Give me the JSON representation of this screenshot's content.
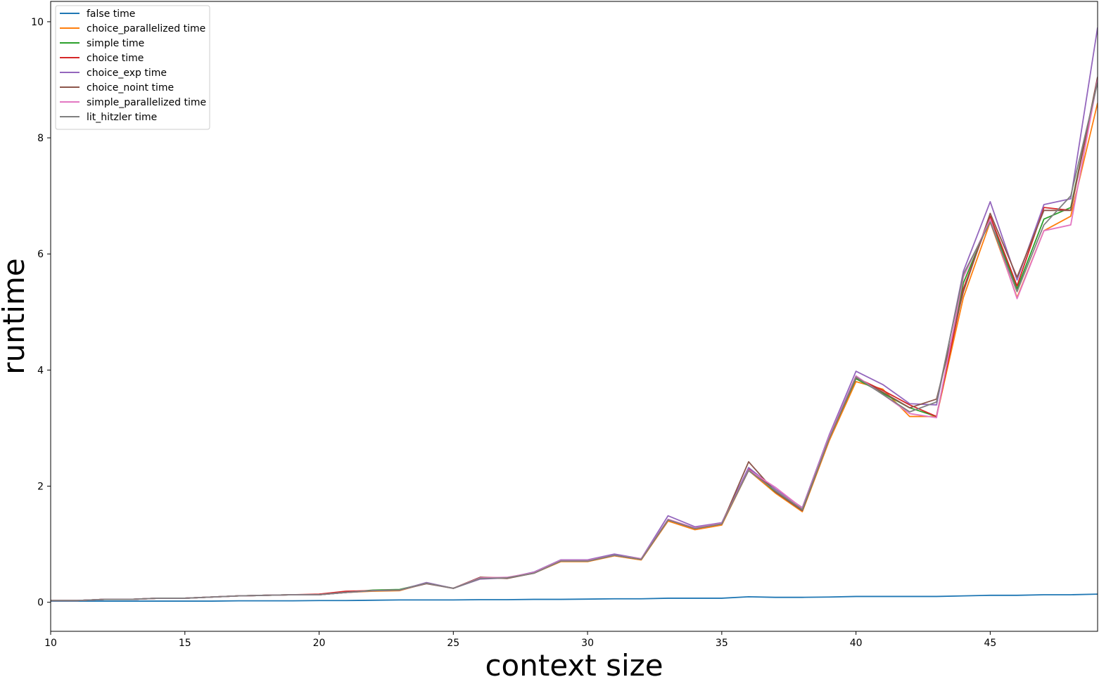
{
  "chart_data": {
    "type": "line",
    "title": "",
    "xlabel": "context size",
    "ylabel": "runtime",
    "xlim": [
      10,
      49
    ],
    "ylim": [
      -0.5,
      10.35
    ],
    "xticks": [
      10,
      15,
      20,
      25,
      30,
      35,
      40,
      45
    ],
    "yticks": [
      0,
      2,
      4,
      6,
      8,
      10
    ],
    "grid": false,
    "legend_position": "top-left",
    "x": [
      10,
      11,
      12,
      13,
      14,
      15,
      16,
      17,
      18,
      19,
      20,
      21,
      22,
      23,
      24,
      25,
      26,
      27,
      28,
      29,
      30,
      31,
      32,
      33,
      34,
      35,
      36,
      37,
      38,
      39,
      40,
      41,
      42,
      43,
      44,
      45,
      46,
      47,
      48,
      49
    ],
    "series": [
      {
        "name": "false time",
        "color": "#1f77b4",
        "values": [
          0.02,
          0.02,
          0.02,
          0.02,
          0.02,
          0.02,
          0.02,
          0.025,
          0.025,
          0.025,
          0.03,
          0.03,
          0.035,
          0.04,
          0.04,
          0.04,
          0.045,
          0.045,
          0.05,
          0.05,
          0.055,
          0.06,
          0.06,
          0.07,
          0.07,
          0.07,
          0.095,
          0.085,
          0.085,
          0.09,
          0.1,
          0.1,
          0.1,
          0.1,
          0.11,
          0.12,
          0.12,
          0.13,
          0.13,
          0.14
        ]
      },
      {
        "name": "choice_parallelized time",
        "color": "#ff7f0e",
        "values": [
          0.03,
          0.03,
          0.05,
          0.05,
          0.07,
          0.07,
          0.09,
          0.11,
          0.12,
          0.13,
          0.13,
          0.17,
          0.19,
          0.2,
          0.33,
          0.24,
          0.41,
          0.42,
          0.5,
          0.7,
          0.7,
          0.8,
          0.73,
          1.4,
          1.25,
          1.33,
          2.27,
          1.88,
          1.56,
          2.78,
          3.8,
          3.67,
          3.2,
          3.2,
          5.25,
          6.55,
          5.25,
          6.4,
          6.65,
          8.6
        ]
      },
      {
        "name": "simple time",
        "color": "#2ca02c",
        "values": [
          0.03,
          0.03,
          0.05,
          0.05,
          0.07,
          0.07,
          0.09,
          0.11,
          0.12,
          0.13,
          0.13,
          0.17,
          0.21,
          0.22,
          0.33,
          0.24,
          0.42,
          0.42,
          0.51,
          0.71,
          0.71,
          0.81,
          0.74,
          1.42,
          1.27,
          1.35,
          2.3,
          1.9,
          1.58,
          2.82,
          3.85,
          3.6,
          3.35,
          3.2,
          5.5,
          6.6,
          5.4,
          6.6,
          6.8,
          9.0
        ]
      },
      {
        "name": "choice time",
        "color": "#d62728",
        "values": [
          0.03,
          0.03,
          0.05,
          0.05,
          0.07,
          0.07,
          0.09,
          0.11,
          0.12,
          0.13,
          0.14,
          0.19,
          0.2,
          0.21,
          0.33,
          0.24,
          0.43,
          0.42,
          0.51,
          0.71,
          0.71,
          0.81,
          0.74,
          1.42,
          1.27,
          1.35,
          2.3,
          1.92,
          1.6,
          2.82,
          3.87,
          3.65,
          3.4,
          3.2,
          5.4,
          6.65,
          5.45,
          6.8,
          6.75,
          9.0
        ]
      },
      {
        "name": "choice_exp time",
        "color": "#9467bd",
        "values": [
          0.03,
          0.03,
          0.05,
          0.05,
          0.07,
          0.07,
          0.09,
          0.11,
          0.12,
          0.13,
          0.13,
          0.17,
          0.2,
          0.21,
          0.34,
          0.24,
          0.4,
          0.42,
          0.52,
          0.73,
          0.73,
          0.83,
          0.75,
          1.49,
          1.3,
          1.37,
          2.32,
          1.95,
          1.63,
          2.88,
          3.98,
          3.75,
          3.42,
          3.4,
          5.7,
          6.9,
          5.55,
          6.85,
          6.95,
          9.9
        ]
      },
      {
        "name": "choice_noint time",
        "color": "#8c564b",
        "values": [
          0.03,
          0.03,
          0.05,
          0.05,
          0.07,
          0.07,
          0.09,
          0.11,
          0.12,
          0.13,
          0.13,
          0.17,
          0.2,
          0.21,
          0.32,
          0.24,
          0.43,
          0.41,
          0.5,
          0.71,
          0.71,
          0.81,
          0.74,
          1.42,
          1.27,
          1.35,
          2.42,
          1.9,
          1.58,
          2.82,
          3.87,
          3.62,
          3.35,
          3.5,
          5.35,
          6.7,
          5.6,
          6.75,
          6.75,
          9.05
        ]
      },
      {
        "name": "simple_parallelized time",
        "color": "#e377c2",
        "values": [
          0.03,
          0.03,
          0.05,
          0.05,
          0.07,
          0.07,
          0.09,
          0.11,
          0.12,
          0.13,
          0.13,
          0.17,
          0.2,
          0.21,
          0.33,
          0.24,
          0.42,
          0.43,
          0.51,
          0.72,
          0.72,
          0.81,
          0.75,
          1.43,
          1.28,
          1.36,
          2.28,
          1.98,
          1.62,
          2.85,
          3.9,
          3.58,
          3.25,
          3.18,
          5.6,
          6.6,
          5.23,
          6.4,
          6.5,
          9.0
        ]
      },
      {
        "name": "lit_hitzler time",
        "color": "#7f7f7f",
        "values": [
          0.03,
          0.03,
          0.05,
          0.05,
          0.07,
          0.07,
          0.09,
          0.11,
          0.12,
          0.13,
          0.13,
          0.17,
          0.2,
          0.21,
          0.33,
          0.24,
          0.41,
          0.42,
          0.5,
          0.71,
          0.71,
          0.81,
          0.74,
          1.42,
          1.27,
          1.35,
          2.27,
          1.92,
          1.6,
          2.82,
          3.88,
          3.58,
          3.28,
          3.45,
          5.65,
          6.55,
          5.35,
          6.5,
          7.0,
          8.95
        ]
      }
    ]
  }
}
